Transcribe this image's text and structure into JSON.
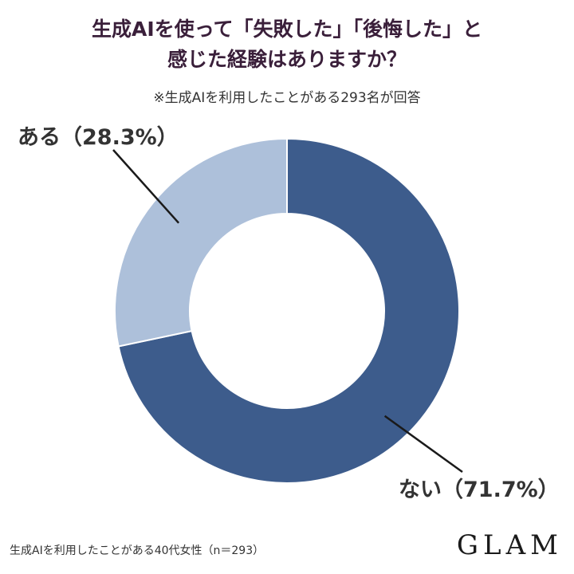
{
  "title": {
    "line1": "生成AIを使って「失敗した」「後悔した」と",
    "line2": "感じた経験はありますか？"
  },
  "subtitle": "※生成AIを利用したことがある293名が回答",
  "footnote": "生成AIを利用したことがある40代女性（n＝293）",
  "logo": "GLAM",
  "chart_data": {
    "type": "pie",
    "donut": true,
    "categories": [
      "ない",
      "ある"
    ],
    "values": [
      71.7,
      28.3
    ],
    "unit": "%",
    "labels": [
      "ない（71.7%）",
      "ある（28.3%）"
    ],
    "colors": [
      "#3d5c8c",
      "#adc0da"
    ]
  }
}
